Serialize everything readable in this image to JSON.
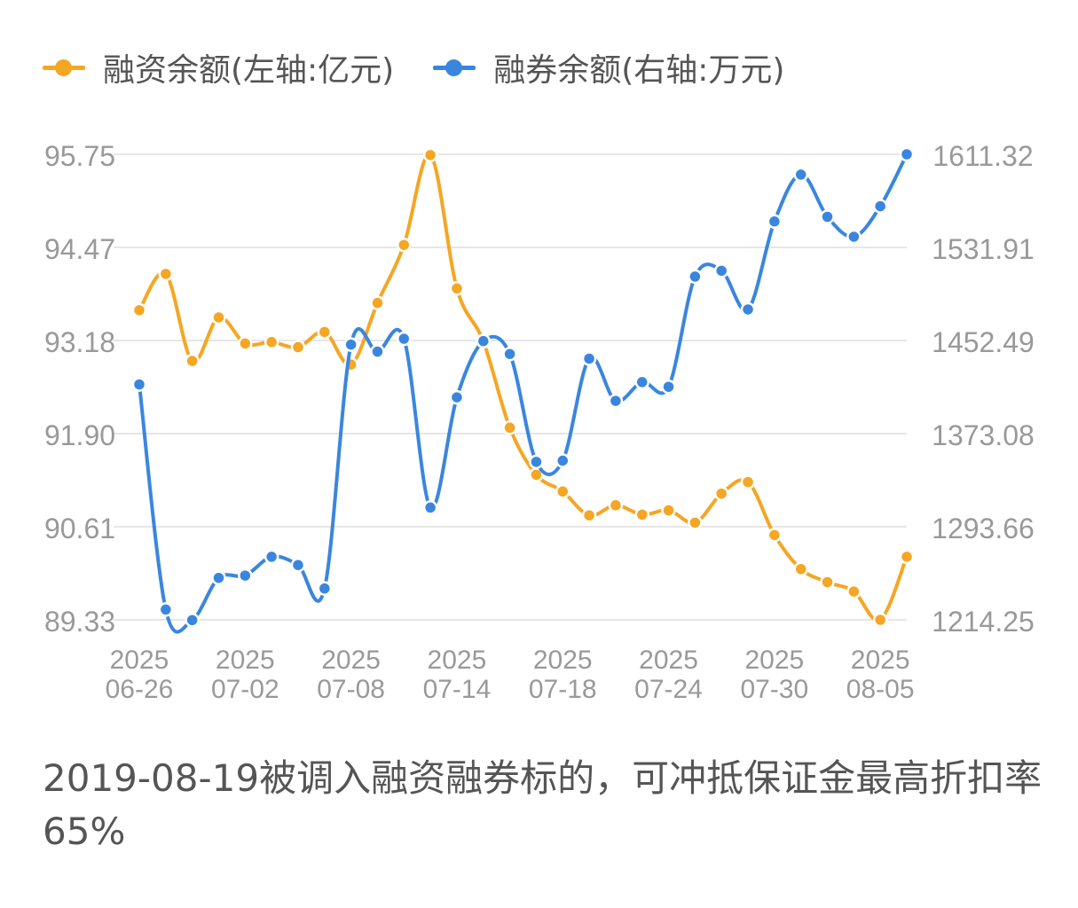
{
  "legend": [
    {
      "label": "融资余额(左轴:亿元)",
      "color": "#F5A623"
    },
    {
      "label": "融券余额(右轴:万元)",
      "color": "#3A86DF"
    }
  ],
  "note": "2019-08-19被调入融资融券标的，可冲抵保证金最高折扣率65%",
  "chart_data": {
    "type": "line",
    "x": [
      "06-26",
      "06-27",
      "06-30",
      "07-01",
      "07-02",
      "07-03",
      "07-04",
      "07-07",
      "07-08",
      "07-09",
      "07-10",
      "07-11",
      "07-14",
      "07-15",
      "07-16",
      "07-17",
      "07-18",
      "07-21",
      "07-22",
      "07-23",
      "07-24",
      "07-25",
      "07-28",
      "07-29",
      "07-30",
      "07-31",
      "08-01",
      "08-04",
      "08-05",
      "08-06"
    ],
    "x_tick_labels": [
      {
        "year": "2025",
        "date": "06-26"
      },
      {
        "year": "2025",
        "date": "07-02"
      },
      {
        "year": "2025",
        "date": "07-08"
      },
      {
        "year": "2025",
        "date": "07-14"
      },
      {
        "year": "2025",
        "date": "07-18"
      },
      {
        "year": "2025",
        "date": "07-24"
      },
      {
        "year": "2025",
        "date": "07-30"
      },
      {
        "year": "2025",
        "date": "08-05"
      }
    ],
    "tick_indices": [
      0,
      4,
      8,
      12,
      16,
      20,
      24,
      28
    ],
    "y_left": {
      "min": 89.33,
      "max": 95.75,
      "ticks": [
        "95.75",
        "94.47",
        "93.18",
        "91.90",
        "90.61",
        "89.33"
      ]
    },
    "y_right": {
      "min": 1214.25,
      "max": 1611.32,
      "ticks": [
        "1611.32",
        "1531.91",
        "1452.49",
        "1373.08",
        "1293.66",
        "1214.25"
      ]
    },
    "grid": true,
    "legend_position": "top-left",
    "series": [
      {
        "name": "融资余额(左轴:亿元)",
        "axis": "left",
        "color": "#F5A623",
        "values": [
          93.6,
          94.1,
          92.9,
          93.5,
          93.14,
          93.16,
          93.09,
          93.3,
          92.85,
          93.7,
          94.5,
          95.74,
          93.9,
          93.17,
          91.98,
          91.33,
          91.1,
          90.77,
          90.91,
          90.78,
          90.84,
          90.67,
          91.07,
          91.23,
          90.5,
          90.03,
          89.85,
          89.72,
          89.33,
          90.2
        ]
      },
      {
        "name": "融券余额(右轴:万元)",
        "axis": "right",
        "color": "#3A86DF",
        "values": [
          1415,
          1223,
          1214,
          1250,
          1252,
          1268,
          1261,
          1241,
          1449,
          1443,
          1454,
          1310,
          1404,
          1452,
          1441,
          1349,
          1350,
          1437,
          1401,
          1417,
          1413,
          1507,
          1512,
          1479,
          1554,
          1594,
          1558,
          1541,
          1567,
          1611.32
        ]
      }
    ]
  }
}
